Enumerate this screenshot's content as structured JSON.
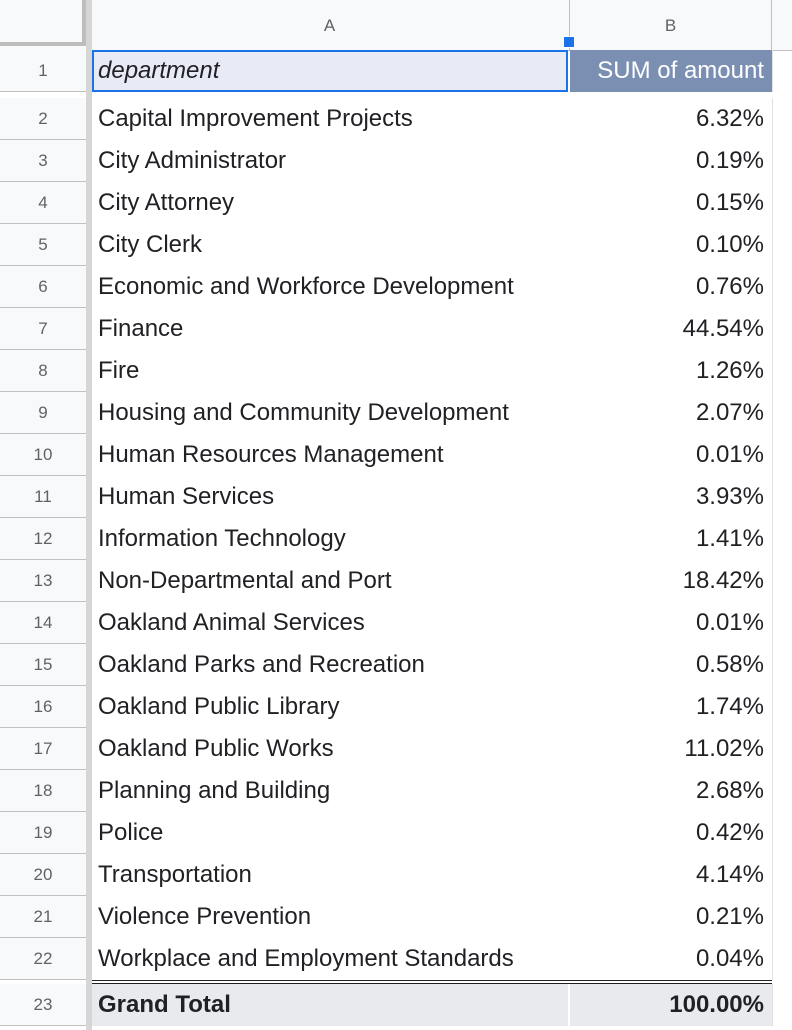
{
  "columns": {
    "a": "A",
    "b": "B"
  },
  "header": {
    "row_number": "1",
    "department": "department",
    "amount": "SUM of amount"
  },
  "rows": [
    {
      "n": "2",
      "department": "Capital Improvement Projects",
      "value": "6.32%"
    },
    {
      "n": "3",
      "department": "City Administrator",
      "value": "0.19%"
    },
    {
      "n": "4",
      "department": "City Attorney",
      "value": "0.15%"
    },
    {
      "n": "5",
      "department": "City Clerk",
      "value": "0.10%"
    },
    {
      "n": "6",
      "department": "Economic and Workforce Development",
      "value": "0.76%"
    },
    {
      "n": "7",
      "department": "Finance",
      "value": "44.54%"
    },
    {
      "n": "8",
      "department": "Fire",
      "value": "1.26%"
    },
    {
      "n": "9",
      "department": "Housing and Community Development",
      "value": "2.07%"
    },
    {
      "n": "10",
      "department": "Human Resources Management",
      "value": "0.01%"
    },
    {
      "n": "11",
      "department": "Human Services",
      "value": "3.93%"
    },
    {
      "n": "12",
      "department": "Information Technology",
      "value": "1.41%"
    },
    {
      "n": "13",
      "department": "Non-Departmental and Port",
      "value": "18.42%"
    },
    {
      "n": "14",
      "department": "Oakland Animal Services",
      "value": "0.01%"
    },
    {
      "n": "15",
      "department": "Oakland Parks and Recreation",
      "value": "0.58%"
    },
    {
      "n": "16",
      "department": "Oakland Public Library",
      "value": "1.74%"
    },
    {
      "n": "17",
      "department": "Oakland Public Works",
      "value": "11.02%"
    },
    {
      "n": "18",
      "department": "Planning and Building",
      "value": "2.68%"
    },
    {
      "n": "19",
      "department": "Police",
      "value": "0.42%"
    },
    {
      "n": "20",
      "department": "Transportation",
      "value": "4.14%"
    },
    {
      "n": "21",
      "department": "Violence Prevention",
      "value": "0.21%"
    },
    {
      "n": "22",
      "department": "Workplace and Employment Standards",
      "value": "0.04%"
    }
  ],
  "total": {
    "n": "23",
    "label": "Grand Total",
    "value": "100.00%"
  }
}
